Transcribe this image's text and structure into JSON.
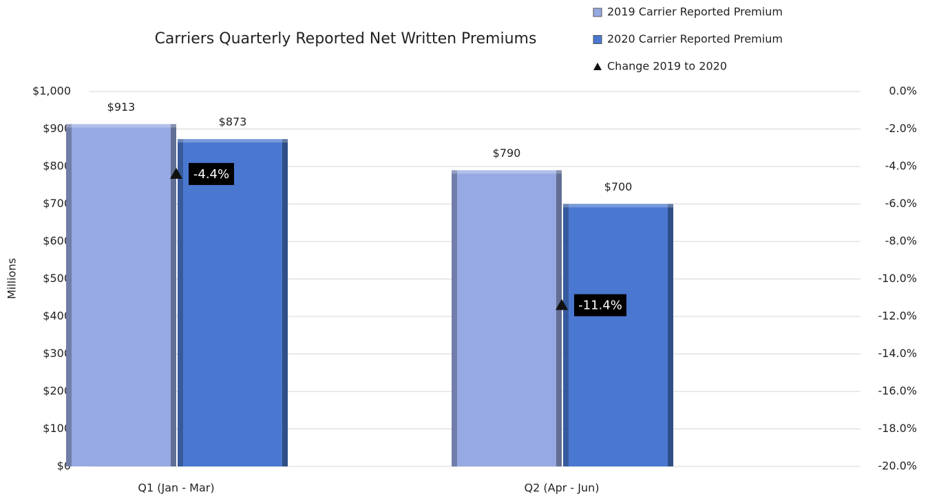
{
  "chart_data": {
    "type": "bar",
    "title": "Carriers Quarterly Reported Net Written Premiums",
    "y_label": "Millions",
    "categories": [
      "Q1 (Jan - Mar)",
      "Q2 (Apr - Jun)"
    ],
    "series": [
      {
        "name": "2019 Carrier Reported Premium",
        "color": "#97a9e2",
        "values": [
          913,
          790
        ],
        "value_labels": [
          "$913",
          "$790"
        ]
      },
      {
        "name": "2020 Carrier Reported Premium",
        "color": "#4a78d0",
        "values": [
          873,
          700
        ],
        "value_labels": [
          "$873",
          "$700"
        ]
      },
      {
        "name": "Change 2019 to 2020",
        "color": "#111111",
        "axis": "y2",
        "marker": "triangle",
        "values": [
          -4.4,
          -11.4
        ],
        "value_labels": [
          "-4.4%",
          "-11.4%"
        ]
      }
    ],
    "ylim": [
      0,
      1000
    ],
    "yticks": [
      {
        "value": 0,
        "label": "$0"
      },
      {
        "value": 100,
        "label": "$100"
      },
      {
        "value": 200,
        "label": "$200"
      },
      {
        "value": 300,
        "label": "$300"
      },
      {
        "value": 400,
        "label": "$400"
      },
      {
        "value": 500,
        "label": "$500"
      },
      {
        "value": 600,
        "label": "$600"
      },
      {
        "value": 700,
        "label": "$700"
      },
      {
        "value": 800,
        "label": "$800"
      },
      {
        "value": 900,
        "label": "$900"
      },
      {
        "value": 1000,
        "label": "$1,000"
      }
    ],
    "y2lim": [
      -20,
      0
    ],
    "y2ticks": [
      {
        "value": 0,
        "label": "0.0%"
      },
      {
        "value": -2,
        "label": "-2.0%"
      },
      {
        "value": -4,
        "label": "-4.0%"
      },
      {
        "value": -6,
        "label": "-6.0%"
      },
      {
        "value": -8,
        "label": "-8.0%"
      },
      {
        "value": -10,
        "label": "-10.0%"
      },
      {
        "value": -12,
        "label": "-12.0%"
      },
      {
        "value": -14,
        "label": "-14.0%"
      },
      {
        "value": -16,
        "label": "-16.0%"
      },
      {
        "value": -18,
        "label": "-18.0%"
      },
      {
        "value": -20,
        "label": "-20.0%"
      }
    ],
    "grid": true
  }
}
